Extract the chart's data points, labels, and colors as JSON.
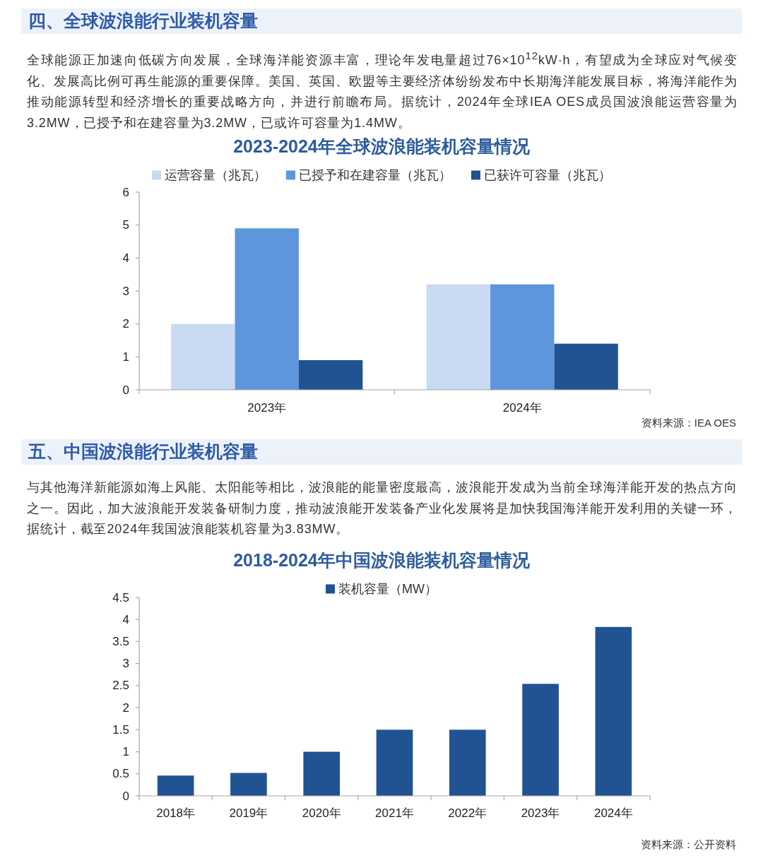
{
  "chart_data": [
    {
      "type": "bar",
      "title": "2023-2024年全球波浪能装机容量情况",
      "categories": [
        "2023年",
        "2024年"
      ],
      "series": [
        {
          "name": "运营容量（兆瓦）",
          "color": "#c9daf2",
          "values": [
            2.0,
            3.2
          ]
        },
        {
          "name": "已授予和在建容量（兆瓦）",
          "color": "#5d96dc",
          "values": [
            4.9,
            3.2
          ]
        },
        {
          "name": "已获许可容量（兆瓦）",
          "color": "#215393",
          "values": [
            0.9,
            1.4
          ]
        }
      ],
      "ylim": [
        0,
        6
      ],
      "yticks": [
        0,
        1,
        2,
        3,
        4,
        5,
        6
      ],
      "legend": "top",
      "annotations": [
        "四、全球波浪能行业装机容量",
        "全球能源正加速向低碳方向发展，全球海洋能资源丰富，理论年发电量超过76×10$^{12}$kW·h，有望成为全球应对气候变化、发展高比例可再生能源的重要保障。美国、英国、欧盟等主要经济体纷纷发布中长期海洋能发展目标，将海洋能作为推动能源转型和经济增长的重要战略方向，并进行前瞻布局。据统计，2024年全球IEA OES成员国波浪能运营容量为3.2MW，已授予和在建容量为3.2MW，已或许可容量为1.4MW。",
        "资料来源：IEA OES"
      ]
    },
    {
      "type": "bar",
      "title": "2018-2024年中国波浪能装机容量情况",
      "categories": [
        "2018年",
        "2019年",
        "2020年",
        "2021年",
        "2022年",
        "2023年",
        "2024年"
      ],
      "series": [
        {
          "name": "装机容量（MW）",
          "color": "#215393",
          "values": [
            0.46,
            0.52,
            1.0,
            1.5,
            1.5,
            2.54,
            3.83
          ]
        }
      ],
      "ylim": [
        0,
        4.5
      ],
      "yticks": [
        0,
        0.5,
        1,
        1.5,
        2,
        2.5,
        3,
        3.5,
        4,
        4.5
      ],
      "legend": "top",
      "annotations": [
        "五、中国波浪能行业装机容量",
        "与其他海洋新能源如海上风能、太阳能等相比，波浪能的能量密度最高，波浪能开发成为当前全球海洋能开发的热点方向之一。因此，加大波浪能开发装备研制力度，推动波浪能开发装备产业化发展将是加快我国海洋能开发利用的关键一环，据统计，截至2024年我国波浪能装机容量为3.83MW。",
        "资料来源：公开资料"
      ]
    }
  ]
}
